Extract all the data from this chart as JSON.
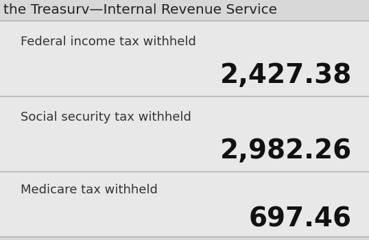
{
  "background_color": "#d8d8d8",
  "cell_bg_color": "#e8e8e8",
  "header_text": "the Treasurv—Internal Revenue Service",
  "header_fontsize": 14.5,
  "header_text_color": "#222222",
  "rows": [
    {
      "label": "Federal income tax withheld",
      "value": "2,427.38",
      "label_fontsize": 13.0,
      "value_fontsize": 28
    },
    {
      "label": "Social security tax withheld",
      "value": "2,982.26",
      "label_fontsize": 13.0,
      "value_fontsize": 28
    },
    {
      "label": "Medicare tax withheld",
      "value": "697.46",
      "label_fontsize": 13.0,
      "value_fontsize": 28
    }
  ],
  "label_color": "#333333",
  "value_color": "#111111",
  "line_color": "#aaaaaa",
  "figsize": [
    5.38,
    3.5
  ],
  "dpi": 100
}
